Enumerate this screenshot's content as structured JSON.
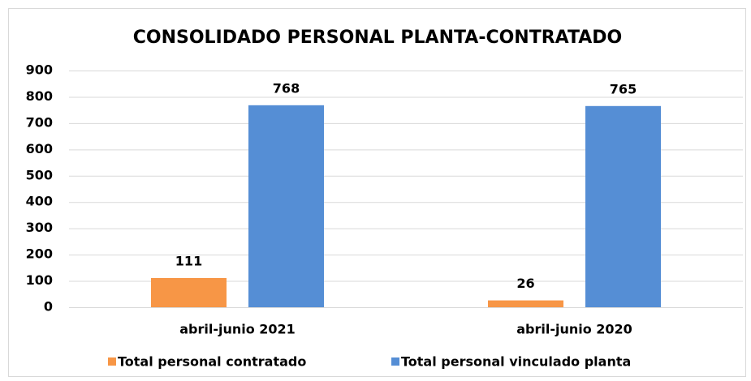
{
  "chart_data": {
    "type": "bar",
    "title": "CONSOLIDADO PERSONAL PLANTA-CONTRATADO",
    "categories": [
      "abril-junio 2021",
      "abril-junio 2020"
    ],
    "series": [
      {
        "name": "Total personal contratado",
        "color": "#f79646",
        "values": [
          111,
          26
        ]
      },
      {
        "name": "Total personal vinculado planta",
        "color": "#558ed5",
        "values": [
          768,
          765
        ]
      }
    ],
    "ylim": [
      0,
      900
    ],
    "yticks": [
      0,
      100,
      200,
      300,
      400,
      500,
      600,
      700,
      800,
      900
    ],
    "grid": true,
    "legend": "bottom"
  }
}
